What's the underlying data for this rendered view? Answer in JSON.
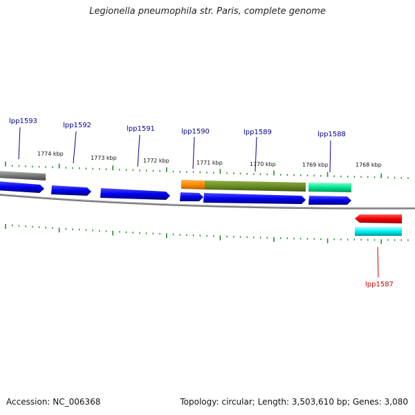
{
  "title": "Legionella pneumophila str. Paris, complete genome",
  "footer": {
    "accession": "Accession: NC_006368",
    "summary": "Topology: circular; Length: 3,503,610 bp; Genes: 3,080"
  },
  "colors": {
    "cds": "#0000ff",
    "cds_reverse": "#ff0000",
    "rna": "#00ffff",
    "orange": "#ff8c00",
    "olive": "#6b8e23",
    "mint": "#00e58f",
    "gray_feature": "#777777",
    "backbone": "#888888",
    "tick": "#228b22",
    "label_forward": "#00008b",
    "label_reverse": "#cc0000"
  },
  "tick_labels": [
    "1774 kbp",
    "1773 kbp",
    "1772 kbp",
    "1771 kbp",
    "1770 kbp",
    "1769 kbp",
    "1768 kbp"
  ],
  "genes": [
    {
      "name": "lpp1593",
      "strand": "forward"
    },
    {
      "name": "lpp1592",
      "strand": "forward"
    },
    {
      "name": "lpp1591",
      "strand": "forward"
    },
    {
      "name": "lpp1590",
      "strand": "forward"
    },
    {
      "name": "lpp1589",
      "strand": "forward"
    },
    {
      "name": "lpp1588",
      "strand": "forward"
    },
    {
      "name": "lpp1587",
      "strand": "reverse"
    }
  ]
}
